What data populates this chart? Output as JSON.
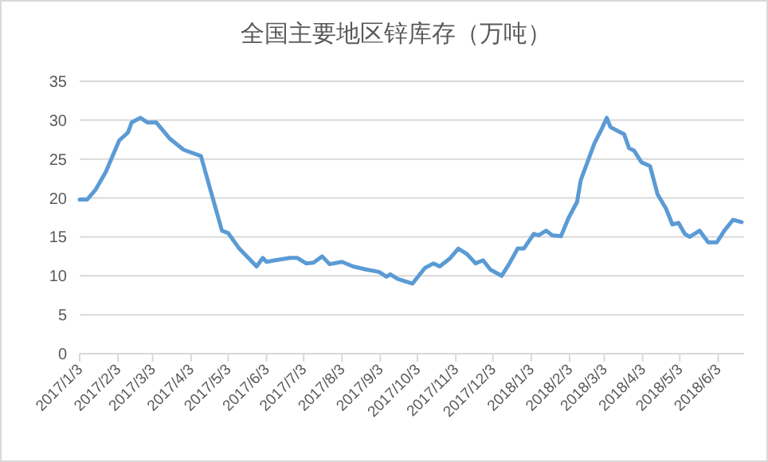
{
  "chart_data": {
    "type": "line",
    "title": "全国主要地区锌库存（万吨）",
    "x": [
      "2017-01-03",
      "2017-01-09",
      "2017-01-16",
      "2017-01-24",
      "2017-02-04",
      "2017-02-11",
      "2017-02-14",
      "2017-02-21",
      "2017-02-27",
      "2017-03-06",
      "2017-03-17",
      "2017-03-28",
      "2017-04-11",
      "2017-04-20",
      "2017-04-28",
      "2017-05-03",
      "2017-05-12",
      "2017-05-26",
      "2017-05-31",
      "2017-06-03",
      "2017-06-10",
      "2017-06-22",
      "2017-06-28",
      "2017-07-05",
      "2017-07-11",
      "2017-07-18",
      "2017-07-24",
      "2017-08-03",
      "2017-08-12",
      "2017-08-23",
      "2017-09-02",
      "2017-09-08",
      "2017-09-11",
      "2017-09-17",
      "2017-09-29",
      "2017-10-09",
      "2017-10-16",
      "2017-10-21",
      "2017-10-29",
      "2017-11-05",
      "2017-11-12",
      "2017-11-19",
      "2017-11-25",
      "2017-12-01",
      "2017-12-10",
      "2017-12-16",
      "2017-12-23",
      "2017-12-28",
      "2018-01-05",
      "2018-01-09",
      "2018-01-15",
      "2018-01-20",
      "2018-01-27",
      "2018-02-02",
      "2018-02-09",
      "2018-02-12",
      "2018-02-23",
      "2018-03-01",
      "2018-03-05",
      "2018-03-08",
      "2018-03-14",
      "2018-03-19",
      "2018-03-23",
      "2018-03-27",
      "2018-04-02",
      "2018-04-09",
      "2018-04-15",
      "2018-04-22",
      "2018-04-27",
      "2018-05-02",
      "2018-05-07",
      "2018-05-11",
      "2018-05-19",
      "2018-05-26",
      "2018-06-02",
      "2018-06-08",
      "2018-06-15",
      "2018-06-22"
    ],
    "series": [
      {
        "color": "#5b9bd5",
        "values": [
          19.8,
          19.8,
          21.1,
          23.3,
          27.4,
          28.4,
          29.7,
          30.3,
          29.7,
          29.7,
          27.6,
          26.2,
          25.4,
          20.3,
          15.8,
          15.5,
          13.5,
          11.2,
          12.3,
          11.8,
          12.0,
          12.3,
          12.3,
          11.6,
          11.7,
          12.5,
          11.5,
          11.8,
          11.2,
          10.8,
          10.5,
          9.9,
          10.2,
          9.6,
          9.0,
          11.0,
          11.6,
          11.2,
          12.2,
          13.5,
          12.8,
          11.6,
          12.0,
          10.8,
          10.0,
          11.5,
          13.5,
          13.5,
          15.4,
          15.2,
          15.8,
          15.2,
          15.1,
          17.4,
          19.5,
          22.3,
          27.0,
          28.9,
          30.3,
          29.1,
          28.6,
          28.2,
          26.4,
          26.1,
          24.6,
          24.1,
          20.5,
          18.6,
          16.6,
          16.8,
          15.4,
          15.0,
          15.8,
          14.3,
          14.3,
          15.8,
          17.2,
          16.9
        ]
      }
    ],
    "xlim": [
      "2017-01-03",
      "2018-06-24"
    ],
    "xticks": [
      {
        "value": "2017-01-03",
        "label": "2017/1/3"
      },
      {
        "value": "2017-02-03",
        "label": "2017/2/3"
      },
      {
        "value": "2017-03-03",
        "label": "2017/3/3"
      },
      {
        "value": "2017-04-03",
        "label": "2017/4/3"
      },
      {
        "value": "2017-05-03",
        "label": "2017/5/3"
      },
      {
        "value": "2017-06-03",
        "label": "2017/6/3"
      },
      {
        "value": "2017-07-03",
        "label": "2017/7/3"
      },
      {
        "value": "2017-08-03",
        "label": "2017/8/3"
      },
      {
        "value": "2017-09-03",
        "label": "2017/9/3"
      },
      {
        "value": "2017-10-03",
        "label": "2017/10/3"
      },
      {
        "value": "2017-11-03",
        "label": "2017/11/3"
      },
      {
        "value": "2017-12-03",
        "label": "2017/12/3"
      },
      {
        "value": "2018-01-03",
        "label": "2018/1/3"
      },
      {
        "value": "2018-02-03",
        "label": "2018/2/3"
      },
      {
        "value": "2018-03-03",
        "label": "2018/3/3"
      },
      {
        "value": "2018-04-03",
        "label": "2018/4/3"
      },
      {
        "value": "2018-05-03",
        "label": "2018/5/3"
      },
      {
        "value": "2018-06-03",
        "label": "2018/6/3"
      }
    ],
    "ylim": [
      0,
      35
    ],
    "yticks": [
      0,
      5,
      10,
      15,
      20,
      25,
      30,
      35
    ],
    "grid": "y",
    "marker": "none",
    "line_style": "solid"
  }
}
